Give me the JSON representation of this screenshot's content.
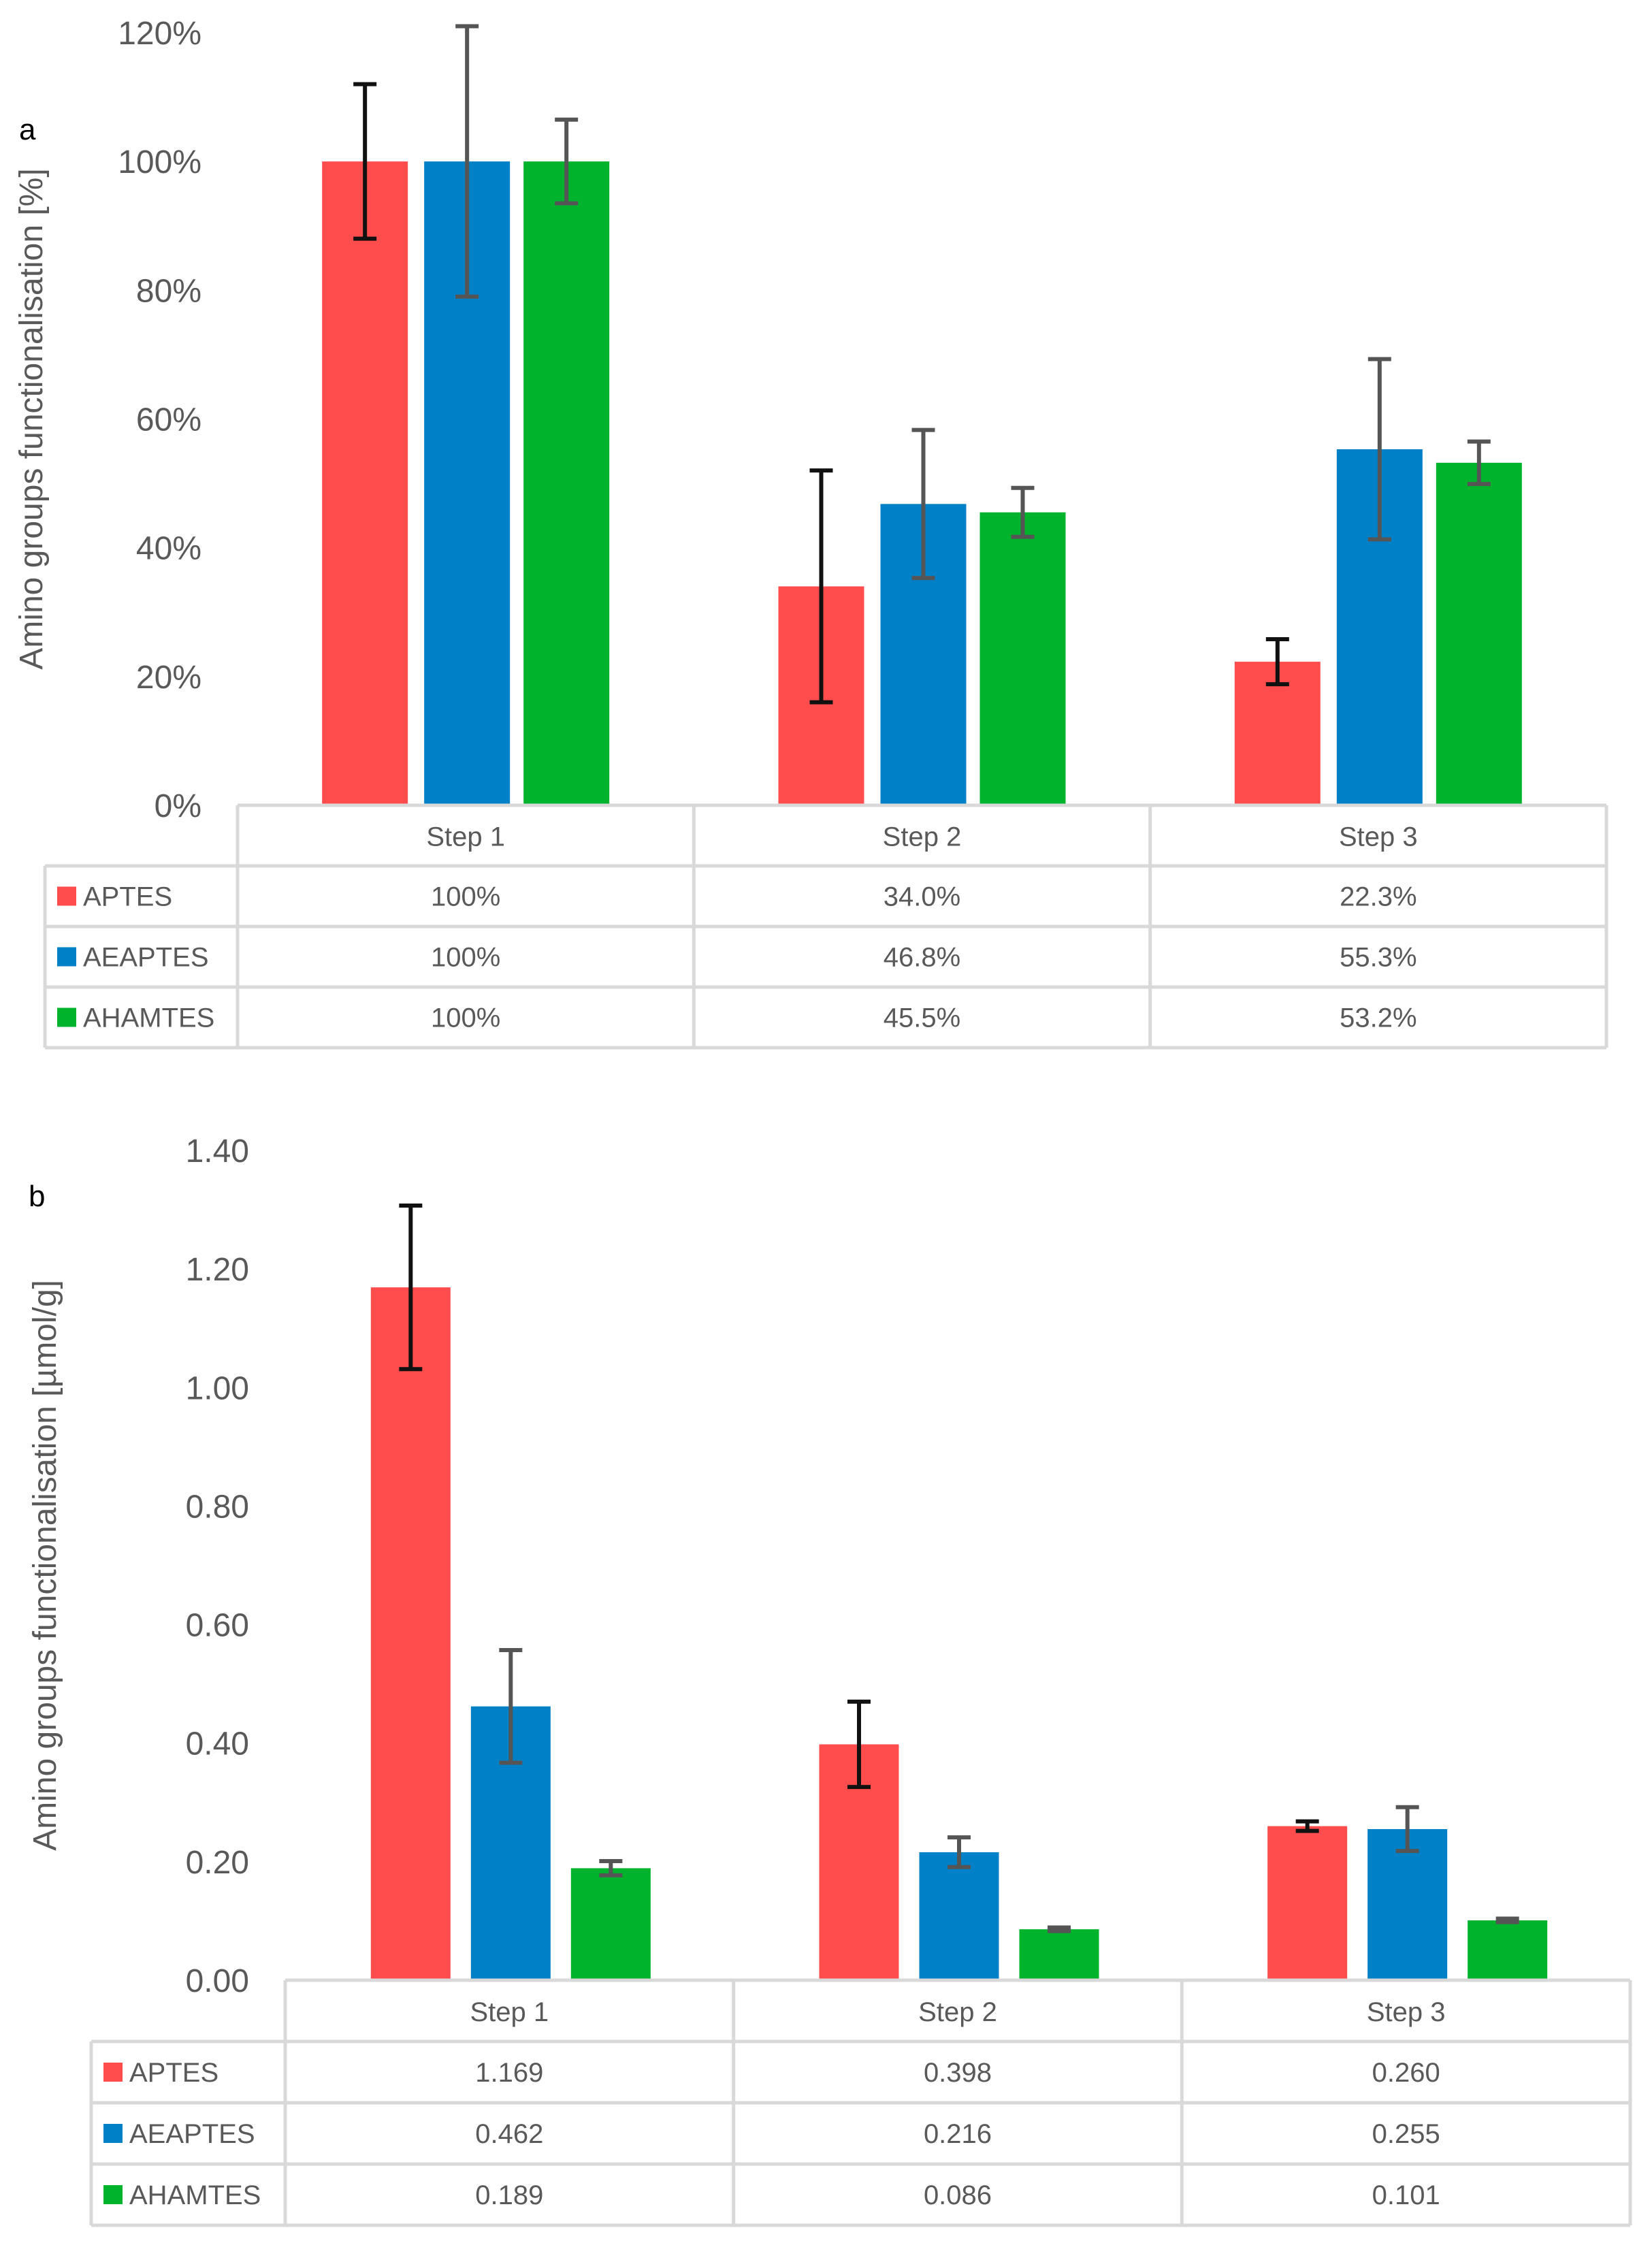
{
  "chart_data": [
    {
      "panel_label": "a",
      "type": "bar",
      "ylabel": "Amino groups functionalisation [%]",
      "ylim": [
        0,
        120
      ],
      "y_ticks": [
        "0%",
        "20%",
        "40%",
        "60%",
        "80%",
        "100%",
        "120%"
      ],
      "y_tick_values": [
        0,
        20,
        40,
        60,
        80,
        100,
        120
      ],
      "categories": [
        "Step 1",
        "Step 2",
        "Step 3"
      ],
      "series": [
        {
          "name": "APTES",
          "color": "#ff4d4d",
          "errbar_color": "#111111",
          "values": [
            100,
            34.0,
            22.3
          ],
          "err": [
            12,
            18,
            3.5
          ],
          "labels": [
            "100%",
            "34.0%",
            "22.3%"
          ]
        },
        {
          "name": "AEAPTES",
          "color": "#0080c6",
          "errbar_color": "#555555",
          "values": [
            100,
            46.8,
            55.3
          ],
          "err": [
            21,
            11.5,
            14
          ],
          "labels": [
            "100%",
            "46.8%",
            "55.3%"
          ]
        },
        {
          "name": "AHAMTES",
          "color": "#00b32d",
          "errbar_color": "#555555",
          "values": [
            100,
            45.5,
            53.2
          ],
          "err": [
            6.5,
            3.8,
            3.3
          ],
          "labels": [
            "100%",
            "45.5%",
            "53.2%"
          ]
        }
      ]
    },
    {
      "panel_label": "b",
      "type": "bar",
      "ylabel": "Amino groups functionalisation [µmol/g]",
      "ylim": [
        0,
        1.4
      ],
      "y_ticks": [
        "0.00",
        "0.20",
        "0.40",
        "0.60",
        "0.80",
        "1.00",
        "1.20",
        "1.40"
      ],
      "y_tick_values": [
        0,
        0.2,
        0.4,
        0.6,
        0.8,
        1.0,
        1.2,
        1.4
      ],
      "categories": [
        "Step 1",
        "Step 2",
        "Step 3"
      ],
      "series": [
        {
          "name": "APTES",
          "color": "#ff4d4d",
          "errbar_color": "#111111",
          "values": [
            1.169,
            0.398,
            0.26
          ],
          "err": [
            0.138,
            0.072,
            0.008
          ],
          "labels": [
            "1.169",
            "0.398",
            "0.260"
          ]
        },
        {
          "name": "AEAPTES",
          "color": "#0080c6",
          "errbar_color": "#555555",
          "values": [
            0.462,
            0.216,
            0.255
          ],
          "err": [
            0.095,
            0.025,
            0.037
          ],
          "labels": [
            "0.462",
            "0.216",
            "0.255"
          ]
        },
        {
          "name": "AHAMTES",
          "color": "#00b32d",
          "errbar_color": "#555555",
          "values": [
            0.189,
            0.086,
            0.101
          ],
          "err": [
            0.012,
            0.003,
            0.003
          ],
          "labels": [
            "0.189",
            "0.086",
            "0.101"
          ]
        }
      ]
    }
  ]
}
